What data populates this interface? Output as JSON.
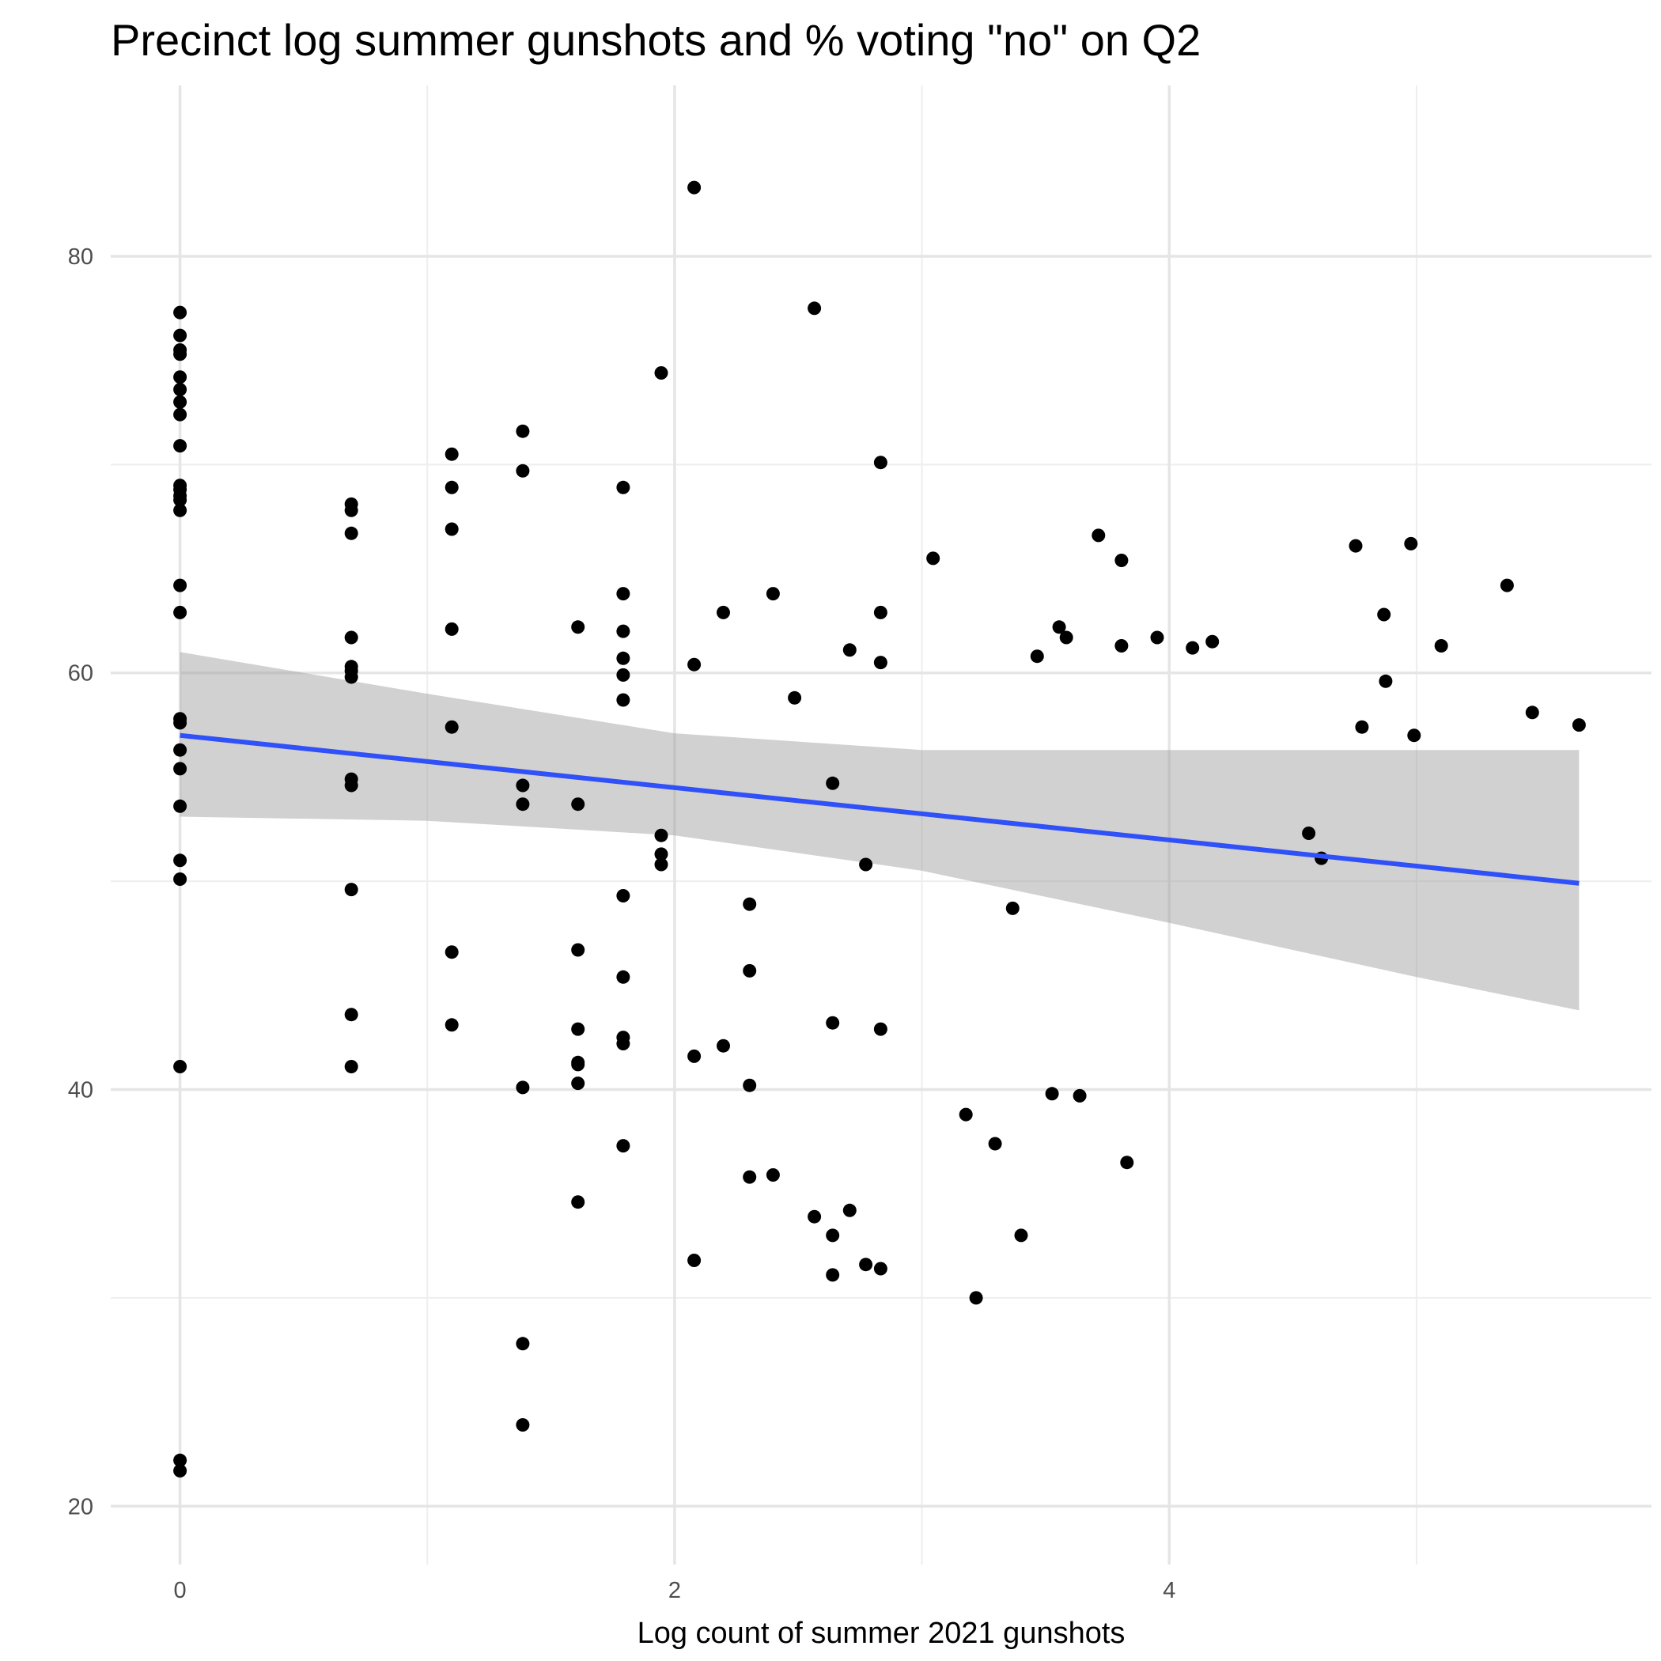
{
  "chart_data": {
    "type": "scatter",
    "title": "Precinct log summer gunshots and % voting \"no\" on Q2",
    "xlabel": "Log count of summer 2021 gunshots",
    "ylabel": "",
    "xlim": [
      -0.28,
      5.95
    ],
    "ylim": [
      17.2,
      88.2
    ],
    "x_major_ticks": [
      0,
      2,
      4
    ],
    "x_tick_labels": [
      "0",
      "2",
      "4"
    ],
    "x_minor_gridlines": [
      1,
      3,
      5
    ],
    "y_major_ticks": [
      20,
      40,
      60,
      80
    ],
    "y_tick_labels": [
      "20",
      "40",
      "60",
      "80"
    ],
    "y_minor_gridlines": [
      30,
      50,
      70
    ],
    "grid": true,
    "legend": "none",
    "colors": {
      "points": "#000000",
      "fit_line": "#3050f8",
      "confidence_band": "#999999",
      "grid_major": "#e5e5e5",
      "grid_minor": "#eeeeee"
    },
    "series": [
      {
        "type": "scatter",
        "x": [
          0,
          0,
          0,
          0,
          0,
          0,
          0,
          0,
          0,
          0,
          0,
          0,
          0,
          0,
          0,
          0,
          0,
          0,
          0,
          0,
          0,
          0,
          0,
          0,
          0,
          0,
          0.693,
          0.693,
          0.693,
          0.693,
          0.693,
          0.693,
          0.693,
          0.693,
          0.693,
          0.693,
          0.693,
          0.693,
          1.099,
          1.099,
          1.099,
          1.099,
          1.099,
          1.099,
          1.099,
          1.386,
          1.386,
          1.386,
          1.386,
          1.386,
          1.386,
          1.386,
          1.609,
          1.609,
          1.609,
          1.609,
          1.609,
          1.609,
          1.609,
          1.609,
          1.792,
          1.792,
          1.792,
          1.792,
          1.792,
          1.792,
          1.792,
          1.792,
          1.792,
          1.792,
          1.792,
          1.946,
          1.946,
          1.946,
          1.946,
          2.079,
          2.079,
          2.079,
          2.079,
          2.197,
          2.197,
          2.303,
          2.303,
          2.303,
          2.303,
          2.398,
          2.398,
          2.485,
          2.565,
          2.565,
          2.639,
          2.639,
          2.639,
          2.639,
          2.708,
          2.708,
          2.773,
          2.773,
          2.833,
          2.833,
          2.833,
          2.833,
          2.833,
          3.045,
          3.178,
          3.219,
          3.296,
          3.367,
          3.401,
          3.466,
          3.526,
          3.555,
          3.584,
          3.638,
          3.714,
          3.807,
          3.807,
          3.829,
          3.951,
          4.094,
          4.174,
          4.564,
          4.615,
          4.754,
          4.779,
          4.868,
          4.875,
          4.977,
          4.99,
          5.1,
          5.366,
          5.468,
          5.657
        ],
        "y": [
          77.3,
          76.2,
          75.5,
          75.3,
          74.2,
          73.6,
          73.0,
          72.4,
          70.9,
          68.8,
          68.5,
          68.3,
          67.8,
          64.2,
          62.9,
          57.8,
          57.6,
          56.3,
          55.4,
          53.6,
          51.0,
          50.1,
          41.1,
          22.2,
          21.7,
          69.0,
          68.1,
          66.7,
          61.7,
          60.3,
          60.1,
          59.8,
          54.9,
          54.6,
          49.6,
          43.6,
          41.1,
          67.8,
          70.5,
          68.9,
          66.9,
          62.1,
          57.4,
          46.6,
          43.1,
          71.6,
          69.7,
          54.6,
          53.7,
          40.1,
          27.8,
          23.9,
          62.2,
          53.7,
          46.7,
          42.9,
          41.3,
          41.2,
          40.3,
          34.6,
          68.9,
          63.8,
          62.0,
          60.7,
          59.9,
          58.7,
          49.3,
          45.4,
          42.5,
          42.2,
          37.3,
          74.4,
          52.2,
          51.3,
          50.8,
          83.3,
          60.4,
          41.6,
          31.8,
          62.9,
          42.1,
          48.9,
          45.7,
          40.2,
          35.8,
          63.8,
          35.9,
          58.8,
          77.5,
          33.9,
          54.7,
          43.2,
          33.0,
          31.1,
          61.1,
          34.2,
          50.8,
          31.6,
          70.1,
          62.9,
          60.5,
          42.9,
          31.4,
          65.5,
          38.8,
          30.0,
          37.4,
          48.7,
          33.0,
          60.8,
          39.8,
          62.2,
          61.7,
          39.7,
          66.6,
          65.4,
          61.3,
          36.5,
          61.7,
          61.2,
          61.5,
          52.3,
          51.1,
          66.1,
          57.4,
          62.8,
          59.6,
          66.2,
          57.0,
          61.3,
          64.2,
          58.1,
          57.5
        ]
      },
      {
        "type": "line",
        "name": "",
        "x": [
          0,
          5.657
        ],
        "y": [
          57.0,
          49.9
        ]
      },
      {
        "type": "area",
        "name": "",
        "x": [
          0,
          1,
          2,
          3,
          4,
          5,
          5.657
        ],
        "upper": [
          61.0,
          59.0,
          57.1,
          56.3,
          56.3,
          56.3,
          56.3
        ],
        "lower": [
          53.1,
          52.9,
          52.2,
          50.5,
          48.0,
          45.4,
          43.8
        ]
      }
    ]
  }
}
